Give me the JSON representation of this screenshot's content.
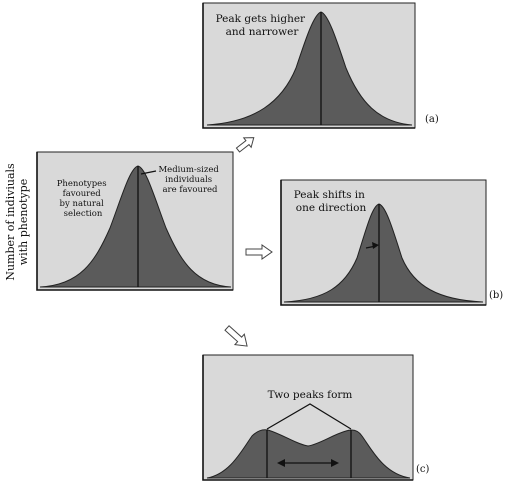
{
  "page": {
    "y_axis_label_line1": "Number of indiviuals",
    "y_axis_label_line2": "with phenotype"
  },
  "original": {
    "callout_left_lines": [
      "Phenotypes",
      "favoured",
      "by natural",
      "selection"
    ],
    "callout_right_lines": [
      "Medium-sized",
      "individuals",
      "are favoured"
    ]
  },
  "panel_a": {
    "title_lines": [
      "Peak gets higher",
      "and narrower"
    ],
    "tag": "(a)"
  },
  "panel_b": {
    "title_lines": [
      "Peak shifts in",
      "one direction"
    ],
    "tag": "(b)"
  },
  "panel_c": {
    "title": "Two peaks form",
    "tag": "(c)"
  },
  "colors": {
    "panel_fill": "#d9d9d9",
    "curve_fill": "#5b5b5b",
    "ink": "#111111"
  }
}
